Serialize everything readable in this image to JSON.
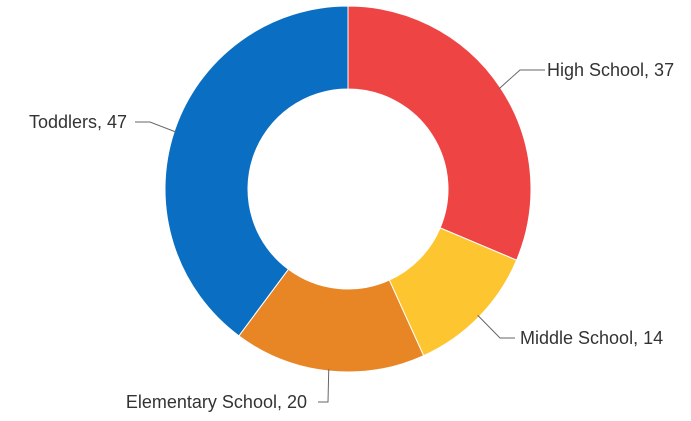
{
  "chart_data": {
    "type": "pie",
    "variant": "donut",
    "start_angle_deg": 0,
    "direction": "clockwise",
    "slices": [
      {
        "label": "High School",
        "value": 37,
        "text": "High School, 37",
        "color": "#ef4444"
      },
      {
        "label": "Middle School",
        "value": 14,
        "text": "Middle School, 14",
        "color": "#fdc52f"
      },
      {
        "label": "Elementary School",
        "value": 20,
        "text": "Elementary School, 20",
        "color": "#e88625"
      },
      {
        "label": "Toddlers",
        "value": 47,
        "text": "Toddlers, 47",
        "color": "#0a6fc2"
      }
    ],
    "legend": "none",
    "label_line_color": "#666666",
    "label_text_color": "#333333"
  }
}
